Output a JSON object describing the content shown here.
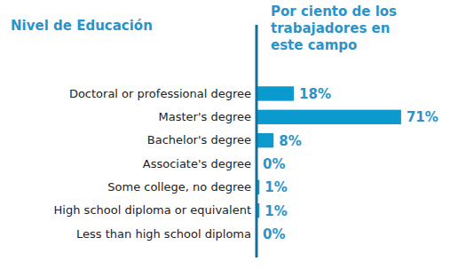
{
  "chart_data": {
    "type": "bar",
    "orientation": "horizontal",
    "ylabel": "Nivel de Educación",
    "xlabel": "Por ciento de los trabajadores en este campo",
    "categories": [
      "Doctoral or professional degree",
      "Master's degree",
      "Bachelor's degree",
      "Associate's degree",
      "Some college, no degree",
      "High school diploma or equivalent",
      "Less than high school diploma"
    ],
    "values": [
      18,
      71,
      8,
      0,
      1,
      1,
      0
    ],
    "value_labels": [
      "18%",
      "71%",
      "8%",
      "0%",
      "1%",
      "1%",
      "0%"
    ],
    "data_labels": true,
    "color": "#0a9acd",
    "xlim": [
      0,
      100
    ],
    "grid": false
  }
}
